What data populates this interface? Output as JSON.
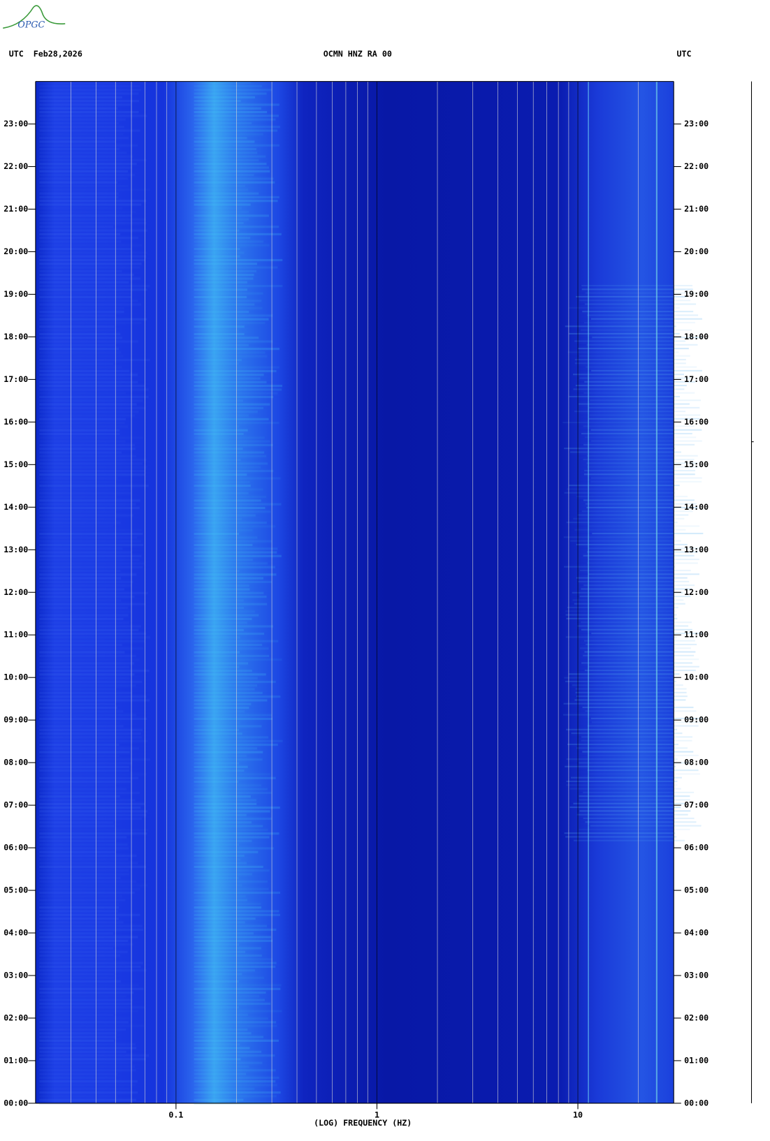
{
  "chart_data": {
    "type": "spectrogram",
    "logo": "OPGC",
    "title_left": "UTC  Feb28,2026",
    "title": "OCMN HNZ RA 00",
    "title_right": "UTC",
    "xlabel": "(LOG) FREQUENCY (HZ)",
    "xscale": "log",
    "xlim": [
      0.02,
      30
    ],
    "xticks": [
      {
        "value": 0.1,
        "label": "0.1"
      },
      1,
      10
    ],
    "xgrid": [
      0.03,
      0.04,
      0.05,
      0.06,
      0.07,
      0.08,
      0.09,
      0.1,
      0.2,
      0.3,
      0.4,
      0.5,
      0.6,
      0.7,
      0.8,
      0.9,
      1,
      2,
      3,
      4,
      5,
      6,
      7,
      8,
      9,
      10,
      20
    ],
    "ylim": [
      0,
      24
    ],
    "yticks": [
      {
        "value": 0,
        "label": "00:00"
      },
      {
        "value": 1,
        "label": "01:00"
      },
      {
        "value": 2,
        "label": "02:00"
      },
      {
        "value": 3,
        "label": "03:00"
      },
      {
        "value": 4,
        "label": "04:00"
      },
      {
        "value": 5,
        "label": "05:00"
      },
      {
        "value": 6,
        "label": "06:00"
      },
      {
        "value": 7,
        "label": "07:00"
      },
      {
        "value": 8,
        "label": "08:00"
      },
      {
        "value": 9,
        "label": "09:00"
      },
      {
        "value": 10,
        "label": "10:00"
      },
      {
        "value": 11,
        "label": "11:00"
      },
      {
        "value": 12,
        "label": "12:00"
      },
      {
        "value": 13,
        "label": "13:00"
      },
      {
        "value": 14,
        "label": "14:00"
      },
      {
        "value": 15,
        "label": "15:00"
      },
      {
        "value": 16,
        "label": "16:00"
      },
      {
        "value": 17,
        "label": "17:00"
      },
      {
        "value": 18,
        "label": "18:00"
      },
      {
        "value": 19,
        "label": "19:00"
      },
      {
        "value": 20,
        "label": "20:00"
      },
      {
        "value": 21,
        "label": "21:00"
      },
      {
        "value": 22,
        "label": "22:00"
      },
      {
        "value": 23,
        "label": "23:00"
      }
    ]
  }
}
